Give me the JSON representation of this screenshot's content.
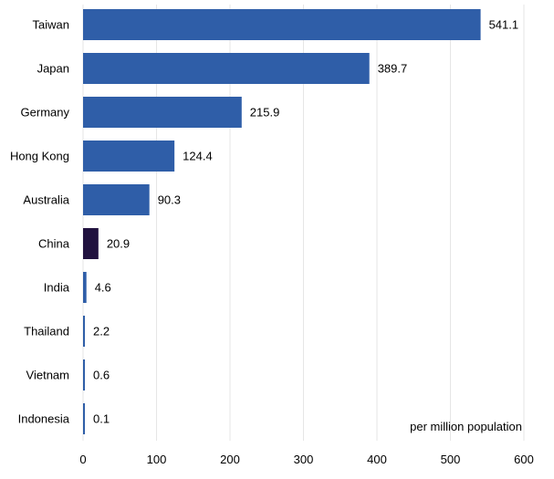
{
  "chart_data": {
    "type": "bar",
    "orientation": "horizontal",
    "categories": [
      "Taiwan",
      "Japan",
      "Germany",
      "Hong Kong",
      "Australia",
      "China",
      "India",
      "Thailand",
      "Vietnam",
      "Indonesia"
    ],
    "values": [
      541.1,
      389.7,
      215.9,
      124.4,
      90.3,
      20.9,
      4.6,
      2.2,
      0.6,
      0.1
    ],
    "value_labels": [
      "541.1",
      "389.7",
      "215.9",
      "124.4",
      "90.3",
      "20.9",
      "4.6",
      "2.2",
      "0.6",
      "0.1"
    ],
    "highlight_category": "China",
    "xlim": [
      0,
      600
    ],
    "xticks": [
      0,
      100,
      200,
      300,
      400,
      500,
      600
    ],
    "tick_labels": [
      "0",
      "100",
      "200",
      "300",
      "400",
      "500",
      "600"
    ],
    "unit_note": "per million population",
    "grid": true,
    "legend": "none",
    "colors": {
      "bar": "#2f5ea8",
      "highlight": "#21123f",
      "grid": "#e6e6e6"
    }
  }
}
